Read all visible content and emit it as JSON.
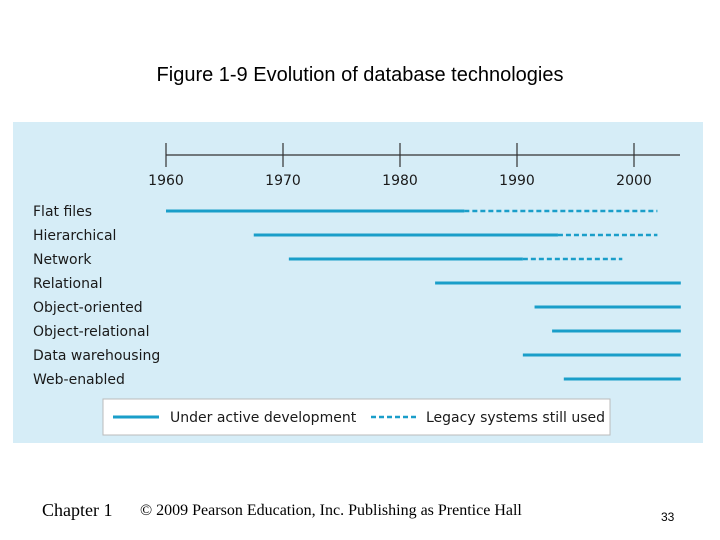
{
  "slide": {
    "title": "Figure 1-9 Evolution of database technologies",
    "footer_chapter": "Chapter 1",
    "footer_copyright": "© 2009 Pearson Education, Inc.  Publishing as Prentice Hall",
    "page_number": "33"
  },
  "diagram": {
    "years": [
      "1960",
      "1970",
      "1980",
      "1990",
      "2000"
    ],
    "technologies": [
      {
        "label": "Flat files",
        "active": [
          1960,
          1985.5
        ],
        "legacy": [
          1985.5,
          2002
        ]
      },
      {
        "label": "Hierarchical",
        "active": [
          1967.5,
          1993.5
        ],
        "legacy": [
          1993.5,
          2002
        ]
      },
      {
        "label": "Network",
        "active": [
          1970.5,
          1990.5
        ],
        "legacy": [
          1990.5,
          1999
        ]
      },
      {
        "label": "Relational",
        "active": [
          1983,
          2004
        ]
      },
      {
        "label": "Object-oriented",
        "active": [
          1991.5,
          2004
        ]
      },
      {
        "label": "Object-relational",
        "active": [
          1993,
          2004
        ]
      },
      {
        "label": "Data warehousing",
        "active": [
          1990.5,
          2004
        ]
      },
      {
        "label": "Web-enabled",
        "active": [
          1994,
          2004
        ]
      }
    ],
    "legend": {
      "active_label": "Under active development",
      "legacy_label": "Legacy systems still used"
    },
    "colors": {
      "panel_bg": "#d6edf7",
      "line": "#1a9ec9",
      "axis": "#333333",
      "legend_bg": "#ffffff"
    }
  }
}
